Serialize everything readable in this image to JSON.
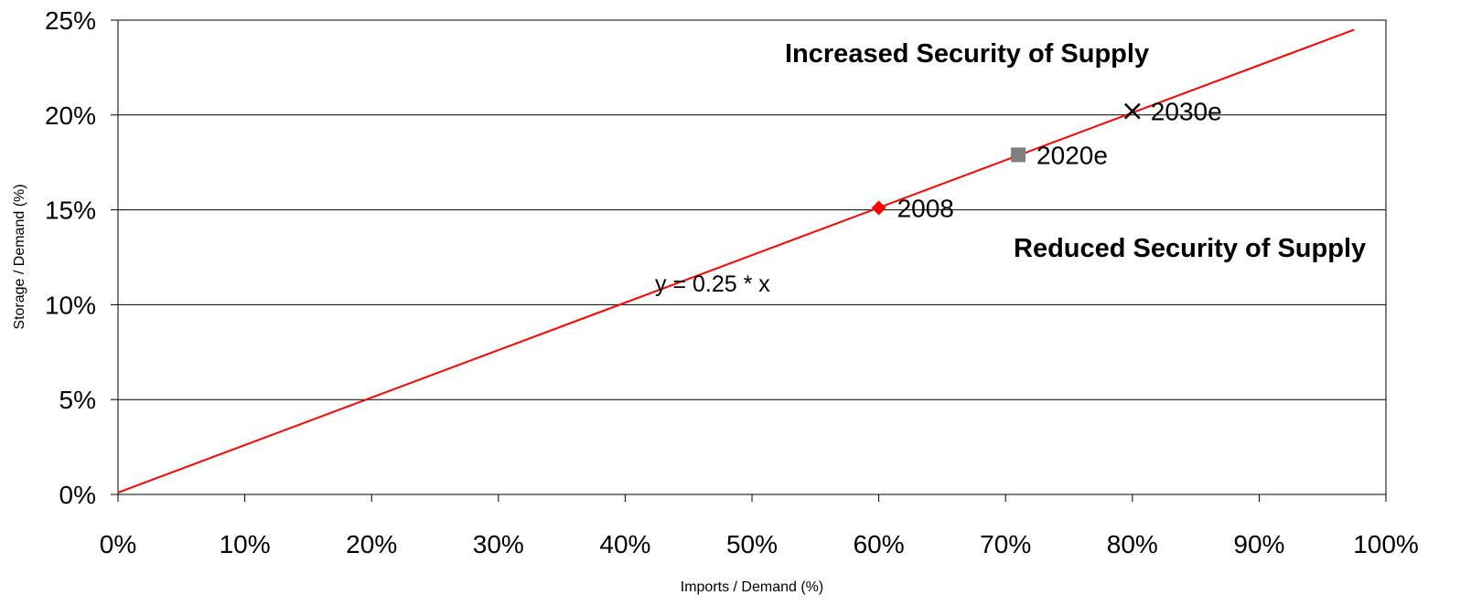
{
  "chart_data": {
    "type": "scatter",
    "xlabel": "Imports / Demand (%)",
    "ylabel": "Storage / Demand (%)",
    "xlim": [
      0,
      100
    ],
    "ylim": [
      0,
      25
    ],
    "x_ticks": [
      "0%",
      "10%",
      "20%",
      "30%",
      "40%",
      "50%",
      "60%",
      "70%",
      "80%",
      "90%",
      "100%"
    ],
    "y_ticks": [
      "0%",
      "5%",
      "10%",
      "15%",
      "20%",
      "25%"
    ],
    "grid": "horizontal",
    "series": [
      {
        "name": "2008",
        "marker": "diamond",
        "color": "#ff0000",
        "x": 60,
        "y": 15.1
      },
      {
        "name": "2020e",
        "marker": "square",
        "color": "#808080",
        "x": 71,
        "y": 17.9
      },
      {
        "name": "2030e",
        "marker": "x",
        "color": "#000000",
        "x": 80,
        "y": 20.2
      }
    ],
    "trendline": {
      "color": "#ff0000",
      "label": "y = 0.25 * x",
      "x_range": [
        0,
        97.5
      ],
      "y_range": [
        0.1,
        24.5
      ]
    },
    "annotations": {
      "upper_region": "Increased Security of Supply",
      "lower_region": "Reduced Security of Supply"
    }
  }
}
